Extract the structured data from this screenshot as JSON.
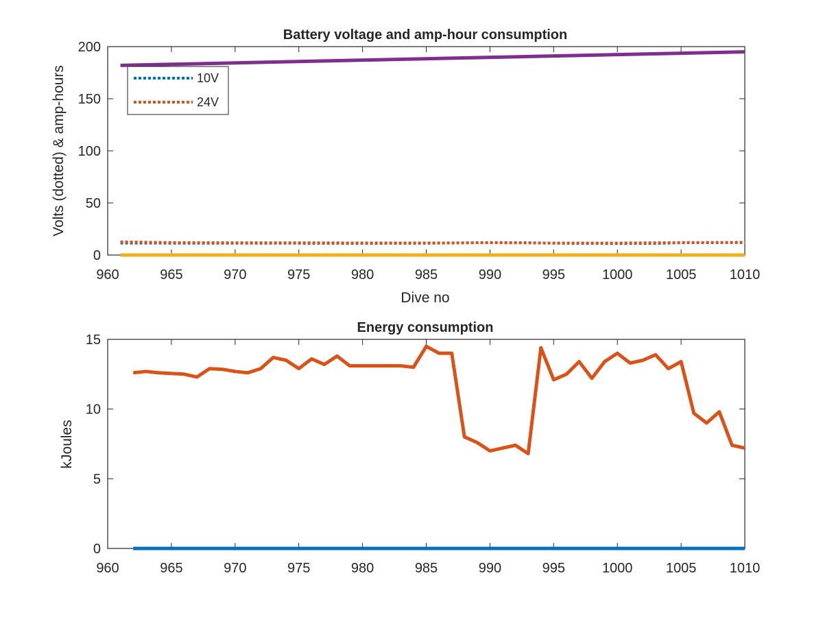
{
  "chart_data": [
    {
      "type": "line",
      "title": "Battery voltage and amp-hour consumption",
      "xlabel": "Dive no",
      "ylabel": "Volts (dotted) & amp-hours",
      "xlim": [
        960,
        1010
      ],
      "ylim": [
        0,
        200
      ],
      "xticks": [
        960,
        965,
        970,
        975,
        980,
        985,
        990,
        995,
        1000,
        1005,
        1010
      ],
      "yticks": [
        0,
        50,
        100,
        150,
        200
      ],
      "legend": {
        "placement": "top-left",
        "entries": [
          "10V",
          "24V"
        ]
      },
      "series": [
        {
          "name": "10V",
          "style": "dotted",
          "color": "#0072BD",
          "x": [
            961,
            965,
            970,
            975,
            980,
            985,
            987,
            990,
            993,
            995,
            1000,
            1003,
            1005,
            1010
          ],
          "y": [
            11.5,
            11.4,
            11.3,
            11.3,
            11.2,
            11.3,
            11.5,
            12.0,
            11.8,
            11.3,
            11.0,
            11.2,
            11.8,
            12.0
          ]
        },
        {
          "name": "24V",
          "style": "dotted",
          "color": "#D95319",
          "x": [
            961,
            965,
            970,
            975,
            980,
            985,
            990,
            995,
            1000,
            1005,
            1010
          ],
          "y": [
            12.6,
            12.0,
            11.8,
            11.8,
            11.6,
            11.6,
            11.8,
            11.5,
            11.5,
            12.0,
            12.2
          ]
        },
        {
          "style": "solid",
          "color": "#EDB120",
          "x": [
            961,
            1010
          ],
          "y": [
            0,
            0
          ]
        },
        {
          "style": "solid",
          "color": "#7E2F8E",
          "x": [
            961,
            1010
          ],
          "y": [
            182,
            195
          ]
        }
      ]
    },
    {
      "type": "line",
      "title": "Energy consumption",
      "xlabel": "",
      "ylabel": "kJoules",
      "xlim": [
        960,
        1010
      ],
      "ylim": [
        0,
        15
      ],
      "xticks": [
        960,
        965,
        970,
        975,
        980,
        985,
        990,
        995,
        1000,
        1005,
        1010
      ],
      "yticks": [
        0,
        5,
        10,
        15
      ],
      "series": [
        {
          "style": "solid",
          "color": "#0072BD",
          "x": [
            962,
            1010
          ],
          "y": [
            0,
            0
          ]
        },
        {
          "style": "solid",
          "color": "#D95319",
          "x": [
            962,
            963,
            964,
            965,
            966,
            967,
            968,
            969,
            970,
            971,
            972,
            973,
            974,
            975,
            976,
            977,
            978,
            979,
            980,
            981,
            982,
            983,
            984,
            985,
            986,
            987,
            988,
            989,
            990,
            991,
            992,
            993,
            994,
            995,
            996,
            997,
            998,
            999,
            1000,
            1001,
            1002,
            1003,
            1004,
            1005,
            1006,
            1007,
            1008,
            1009,
            1010
          ],
          "y": [
            12.6,
            12.7,
            12.6,
            12.55,
            12.5,
            12.3,
            12.9,
            12.85,
            12.7,
            12.6,
            12.9,
            13.7,
            13.5,
            12.9,
            13.6,
            13.2,
            13.8,
            13.1,
            13.1,
            13.1,
            13.1,
            13.1,
            13.0,
            14.5,
            14.0,
            14.0,
            8.0,
            7.6,
            7.0,
            7.2,
            7.4,
            6.8,
            14.4,
            12.1,
            12.5,
            13.4,
            12.2,
            13.4,
            14.0,
            13.3,
            13.5,
            13.9,
            12.9,
            13.4,
            9.7,
            9.0,
            9.8,
            7.4,
            7.2
          ]
        }
      ]
    }
  ]
}
